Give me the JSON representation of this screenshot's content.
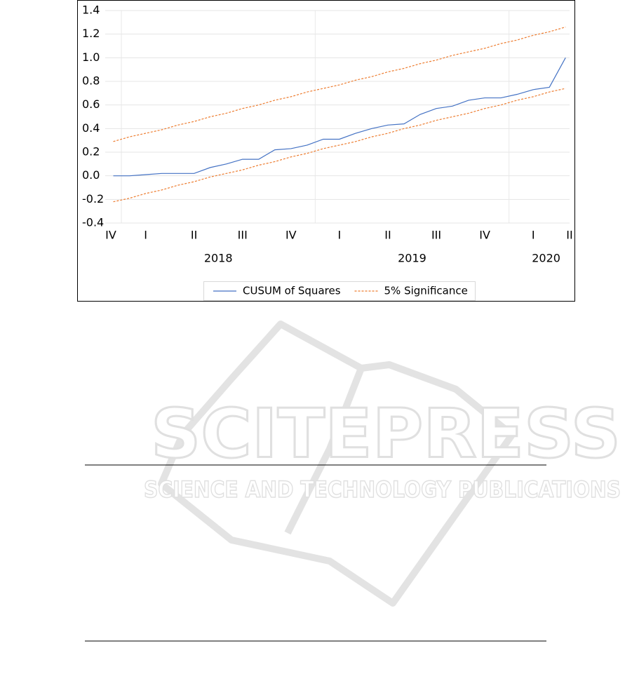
{
  "chart_data": {
    "type": "line",
    "x": [
      0,
      1,
      2,
      3,
      4,
      5,
      6,
      7,
      8,
      9,
      10,
      11,
      12,
      13,
      14,
      15,
      16,
      17,
      18,
      19,
      20,
      21,
      22,
      23,
      24,
      25,
      26,
      27,
      28
    ],
    "xlim": [
      -0.5,
      28.25
    ],
    "xticks": [
      {
        "value": -1,
        "label": "IV"
      },
      {
        "value": 2,
        "label": "I"
      },
      {
        "value": 5,
        "label": "II"
      },
      {
        "value": 8,
        "label": "III"
      },
      {
        "value": 11,
        "label": "IV"
      },
      {
        "value": 14,
        "label": "I"
      },
      {
        "value": 17,
        "label": "II"
      },
      {
        "value": 20,
        "label": "III"
      },
      {
        "value": 23,
        "label": "IV"
      },
      {
        "value": 26,
        "label": "I"
      },
      {
        "value": 29,
        "label": "II"
      }
    ],
    "year_ticks": [
      {
        "value": 6.5,
        "label": "2018"
      },
      {
        "value": 18.5,
        "label": "2019"
      },
      {
        "value": 26.8,
        "label": "2020"
      }
    ],
    "year_grid": [
      0.5,
      12.5,
      24.5
    ],
    "ylim": [
      -0.4,
      1.4
    ],
    "yticks": [
      -0.4,
      -0.2,
      {
        "value": 0,
        "label": "0.0"
      },
      0.2,
      0.4,
      0.6,
      0.8,
      {
        "value": 1,
        "label": "1.0"
      },
      1.2,
      1.4
    ],
    "grid": true,
    "legend": "bottom",
    "series": [
      {
        "name": "CUSUM of Squares",
        "color": "#4472c4",
        "dashed": false,
        "values": [
          0,
          0,
          0.01,
          0.02,
          0.02,
          0.02,
          0.07,
          0.1,
          0.14,
          0.14,
          0.22,
          0.23,
          0.26,
          0.31,
          0.31,
          0.36,
          0.4,
          0.43,
          0.44,
          0.52,
          0.57,
          0.59,
          0.64,
          0.66,
          0.66,
          0.69,
          0.73,
          0.75,
          1.0
        ]
      },
      {
        "name": "5% Significance",
        "color": "#ed7d31",
        "dashed": true,
        "values": [
          0.29,
          0.33,
          0.36,
          0.39,
          0.43,
          0.46,
          0.5,
          0.53,
          0.57,
          0.6,
          0.64,
          0.67,
          0.71,
          0.74,
          0.77,
          0.81,
          0.84,
          0.88,
          0.91,
          0.95,
          0.98,
          1.02,
          1.05,
          1.08,
          1.12,
          1.15,
          1.19,
          1.22,
          1.26
        ],
        "lower": [
          -0.22,
          -0.19,
          -0.15,
          -0.12,
          -0.08,
          -0.05,
          -0.01,
          0.02,
          0.05,
          0.09,
          0.12,
          0.16,
          0.19,
          0.23,
          0.26,
          0.29,
          0.33,
          0.36,
          0.4,
          0.43,
          0.47,
          0.5,
          0.53,
          0.57,
          0.6,
          0.64,
          0.67,
          0.71,
          0.74
        ]
      }
    ]
  },
  "watermark": {
    "title": "SCITEPRESS",
    "subtitle": "SCIENCE AND TECHNOLOGY PUBLICATIONS"
  }
}
